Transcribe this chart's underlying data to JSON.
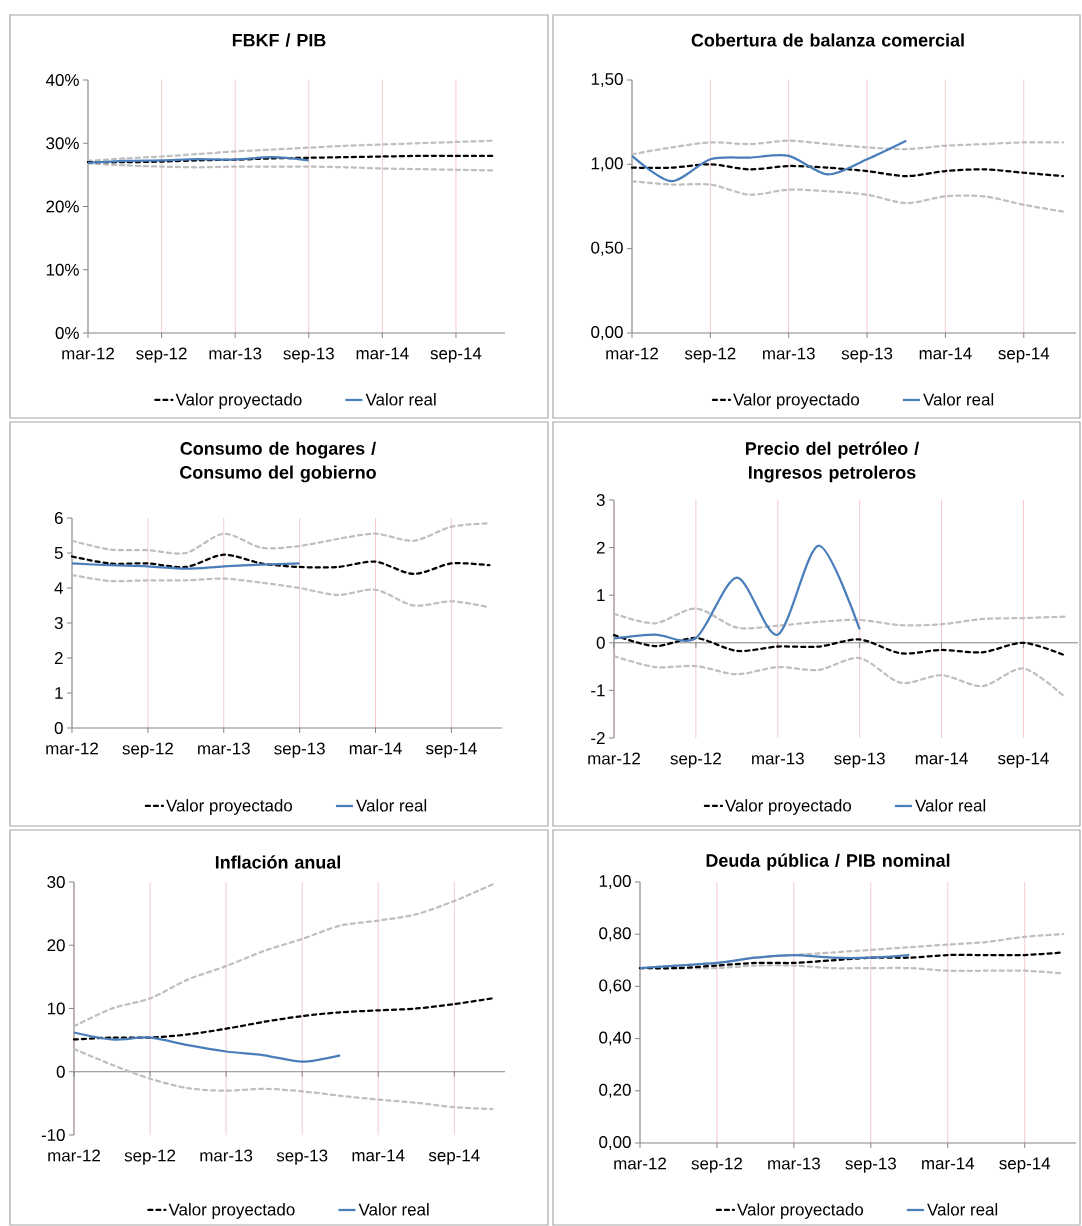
{
  "chart_data": [
    {
      "type": "line",
      "title": "FBKF / PIB",
      "x": [
        "2012-03",
        "2012-06",
        "2012-09",
        "2012-12",
        "2013-03",
        "2013-06",
        "2013-09",
        "2013-12",
        "2014-03",
        "2014-06",
        "2014-09",
        "2014-12"
      ],
      "xlim": [
        "2012-03",
        "2015-01"
      ],
      "xticks": [
        {
          "value": "2012-03",
          "label": "mar-12"
        },
        {
          "value": "2012-09",
          "label": "sep-12"
        },
        {
          "value": "2013-03",
          "label": "mar-13"
        },
        {
          "value": "2013-09",
          "label": "sep-13"
        },
        {
          "value": "2014-03",
          "label": "mar-14"
        },
        {
          "value": "2014-09",
          "label": "sep-14"
        }
      ],
      "ylim": [
        0,
        40
      ],
      "yticks": [
        {
          "value": 0,
          "label": "0%"
        },
        {
          "value": 10,
          "label": "10%"
        },
        {
          "value": 20,
          "label": "20%"
        },
        {
          "value": 30,
          "label": "30%"
        },
        {
          "value": 40,
          "label": "40%"
        }
      ],
      "grid": "x",
      "legend": "bottom",
      "series": [
        {
          "color": "#bfbfbf",
          "line_style": "dashed",
          "values": [
            27.2,
            27.6,
            27.9,
            28.3,
            28.7,
            29.0,
            29.3,
            29.6,
            29.8,
            30.0,
            30.2,
            30.4
          ]
        },
        {
          "color": "#bfbfbf",
          "line_style": "dashed",
          "values": [
            26.8,
            26.5,
            26.3,
            26.2,
            26.3,
            26.3,
            26.3,
            26.2,
            26.0,
            25.9,
            25.8,
            25.7
          ]
        },
        {
          "name": "Valor proyectado",
          "color": "#000000",
          "line_style": "dashed",
          "values": [
            27.0,
            27.0,
            27.1,
            27.3,
            27.4,
            27.6,
            27.7,
            27.8,
            27.9,
            28.0,
            28.0,
            28.0
          ]
        },
        {
          "name": "Valor real",
          "color": "#4a7ebb",
          "line_style": "solid",
          "values": [
            26.9,
            27.2,
            27.3,
            27.5,
            27.4,
            27.8,
            27.3,
            null,
            null,
            null,
            null,
            null
          ]
        }
      ]
    },
    {
      "type": "line",
      "title": "Cobertura de balanza comercial",
      "x": [
        "2012-03",
        "2012-06",
        "2012-09",
        "2012-12",
        "2013-03",
        "2013-06",
        "2013-09",
        "2013-12",
        "2014-03",
        "2014-06",
        "2014-09",
        "2014-12"
      ],
      "xlim": [
        "2012-03",
        "2015-01"
      ],
      "xticks": [
        {
          "value": "2012-03",
          "label": "mar-12"
        },
        {
          "value": "2012-09",
          "label": "sep-12"
        },
        {
          "value": "2013-03",
          "label": "mar-13"
        },
        {
          "value": "2013-09",
          "label": "sep-13"
        },
        {
          "value": "2014-03",
          "label": "mar-14"
        },
        {
          "value": "2014-09",
          "label": "sep-14"
        }
      ],
      "ylim": [
        0,
        1.5
      ],
      "yticks": [
        {
          "value": 0,
          "label": "0,00"
        },
        {
          "value": 0.5,
          "label": "0,50"
        },
        {
          "value": 1.0,
          "label": "1,00"
        },
        {
          "value": 1.5,
          "label": "1,50"
        }
      ],
      "grid": "x",
      "legend": "bottom",
      "series": [
        {
          "color": "#bfbfbf",
          "line_style": "dashed",
          "values": [
            1.06,
            1.1,
            1.13,
            1.12,
            1.14,
            1.12,
            1.1,
            1.09,
            1.11,
            1.12,
            1.13,
            1.13
          ]
        },
        {
          "color": "#bfbfbf",
          "line_style": "dashed",
          "values": [
            0.9,
            0.88,
            0.88,
            0.82,
            0.85,
            0.84,
            0.82,
            0.77,
            0.81,
            0.81,
            0.76,
            0.72
          ]
        },
        {
          "name": "Valor proyectado",
          "color": "#000000",
          "line_style": "dashed",
          "values": [
            0.98,
            0.98,
            1.0,
            0.97,
            0.99,
            0.98,
            0.96,
            0.93,
            0.96,
            0.97,
            0.95,
            0.93
          ]
        },
        {
          "name": "Valor real",
          "color": "#4a7ebb",
          "line_style": "solid",
          "values": [
            1.05,
            0.9,
            1.03,
            1.04,
            1.05,
            0.94,
            1.03,
            1.14,
            null,
            null,
            null,
            null
          ]
        }
      ]
    },
    {
      "type": "line",
      "title": "Consumo de hogares / Consumo del gobierno",
      "x": [
        "2012-03",
        "2012-06",
        "2012-09",
        "2012-12",
        "2013-03",
        "2013-06",
        "2013-09",
        "2013-12",
        "2014-03",
        "2014-06",
        "2014-09",
        "2014-12"
      ],
      "xlim": [
        "2012-03",
        "2015-01"
      ],
      "xticks": [
        {
          "value": "2012-03",
          "label": "mar-12"
        },
        {
          "value": "2012-09",
          "label": "sep-12"
        },
        {
          "value": "2013-03",
          "label": "mar-13"
        },
        {
          "value": "2013-09",
          "label": "sep-13"
        },
        {
          "value": "2014-03",
          "label": "mar-14"
        },
        {
          "value": "2014-09",
          "label": "sep-14"
        }
      ],
      "ylim": [
        0,
        6
      ],
      "yticks": [
        0,
        1,
        2,
        3,
        4,
        5,
        6
      ],
      "grid": "x",
      "legend": "bottom",
      "series": [
        {
          "color": "#bfbfbf",
          "line_style": "dashed",
          "values": [
            5.35,
            5.1,
            5.08,
            5.0,
            5.55,
            5.15,
            5.2,
            5.4,
            5.55,
            5.35,
            5.75,
            5.85
          ]
        },
        {
          "color": "#bfbfbf",
          "line_style": "dashed",
          "values": [
            4.37,
            4.2,
            4.22,
            4.22,
            4.27,
            4.15,
            4.0,
            3.8,
            3.95,
            3.5,
            3.62,
            3.45
          ]
        },
        {
          "name": "Valor proyectado",
          "color": "#000000",
          "line_style": "dashed",
          "values": [
            4.9,
            4.7,
            4.7,
            4.6,
            4.95,
            4.7,
            4.6,
            4.6,
            4.75,
            4.4,
            4.7,
            4.65
          ]
        },
        {
          "name": "Valor real",
          "color": "#4a7ebb",
          "line_style": "solid",
          "values": [
            4.7,
            4.65,
            4.62,
            4.55,
            4.62,
            4.67,
            4.7,
            null,
            null,
            null,
            null,
            null
          ]
        }
      ]
    },
    {
      "type": "line",
      "title": "Precio del petróleo / Ingresos petroleros",
      "x": [
        "2012-03",
        "2012-06",
        "2012-09",
        "2012-12",
        "2013-03",
        "2013-06",
        "2013-09",
        "2013-12",
        "2014-03",
        "2014-06",
        "2014-09",
        "2014-12"
      ],
      "xlim": [
        "2012-03",
        "2015-01"
      ],
      "xticks": [
        {
          "value": "2012-03",
          "label": "mar-12"
        },
        {
          "value": "2012-09",
          "label": "sep-12"
        },
        {
          "value": "2013-03",
          "label": "mar-13"
        },
        {
          "value": "2013-09",
          "label": "sep-13"
        },
        {
          "value": "2014-03",
          "label": "mar-14"
        },
        {
          "value": "2014-09",
          "label": "sep-14"
        }
      ],
      "ylim": [
        -2,
        3
      ],
      "yticks": [
        -2,
        -1,
        0,
        1,
        2,
        3
      ],
      "grid": "x",
      "legend": "bottom",
      "series": [
        {
          "color": "#bfbfbf",
          "line_style": "dashed",
          "values": [
            0.61,
            0.41,
            0.72,
            0.32,
            0.36,
            0.44,
            0.48,
            0.37,
            0.39,
            0.5,
            0.52,
            0.55
          ]
        },
        {
          "color": "#bfbfbf",
          "line_style": "dashed",
          "values": [
            -0.28,
            -0.51,
            -0.49,
            -0.66,
            -0.51,
            -0.57,
            -0.32,
            -0.84,
            -0.68,
            -0.91,
            -0.54,
            -1.13
          ]
        },
        {
          "name": "Valor proyectado",
          "color": "#000000",
          "line_style": "dashed",
          "values": [
            0.16,
            -0.07,
            0.1,
            -0.17,
            -0.08,
            -0.08,
            0.07,
            -0.22,
            -0.15,
            -0.2,
            0.0,
            -0.26
          ]
        },
        {
          "name": "Valor real",
          "color": "#4a7ebb",
          "line_style": "solid",
          "values": [
            0.09,
            0.17,
            0.1,
            1.37,
            0.17,
            2.04,
            0.28,
            null,
            null,
            null,
            null,
            null
          ]
        }
      ]
    },
    {
      "type": "line",
      "title": "Inflación anual",
      "x": [
        "2012-03",
        "2012-06",
        "2012-09",
        "2012-12",
        "2013-03",
        "2013-06",
        "2013-09",
        "2013-12",
        "2014-03",
        "2014-06",
        "2014-09",
        "2014-12"
      ],
      "xlim": [
        "2012-03",
        "2015-01"
      ],
      "xticks": [
        {
          "value": "2012-03",
          "label": "mar-12"
        },
        {
          "value": "2012-09",
          "label": "sep-12"
        },
        {
          "value": "2013-03",
          "label": "mar-13"
        },
        {
          "value": "2013-09",
          "label": "sep-13"
        },
        {
          "value": "2014-03",
          "label": "mar-14"
        },
        {
          "value": "2014-09",
          "label": "sep-14"
        }
      ],
      "ylim": [
        -10,
        30
      ],
      "yticks": [
        -10,
        0,
        10,
        20,
        30
      ],
      "grid": "x",
      "legend": "bottom",
      "series": [
        {
          "color": "#bfbfbf",
          "line_style": "dashed",
          "values": [
            7.2,
            10.0,
            11.6,
            14.6,
            16.7,
            19.1,
            21.0,
            23.1,
            23.9,
            24.9,
            27.0,
            29.6
          ]
        },
        {
          "color": "#bfbfbf",
          "line_style": "dashed",
          "values": [
            3.6,
            1.1,
            -1.1,
            -2.6,
            -3.0,
            -2.7,
            -3.1,
            -3.8,
            -4.4,
            -4.9,
            -5.6,
            -5.9
          ]
        },
        {
          "name": "Valor proyectado",
          "color": "#000000",
          "line_style": "dashed",
          "values": [
            5.1,
            5.4,
            5.4,
            5.9,
            6.8,
            7.9,
            8.8,
            9.4,
            9.7,
            10.0,
            10.7,
            11.6
          ]
        },
        {
          "name": "Valor real",
          "color": "#4a7ebb",
          "line_style": "solid",
          "values": [
            6.2,
            5.1,
            5.4,
            4.2,
            3.2,
            2.6,
            1.6,
            2.6,
            null,
            null,
            null,
            null
          ]
        }
      ]
    },
    {
      "type": "line",
      "title": "Deuda pública / PIB nominal",
      "x": [
        "2012-03",
        "2012-06",
        "2012-09",
        "2012-12",
        "2013-03",
        "2013-06",
        "2013-09",
        "2013-12",
        "2014-03",
        "2014-06",
        "2014-09",
        "2014-12"
      ],
      "xlim": [
        "2012-03",
        "2015-01"
      ],
      "xticks": [
        {
          "value": "2012-03",
          "label": "mar-12"
        },
        {
          "value": "2012-09",
          "label": "sep-12"
        },
        {
          "value": "2013-03",
          "label": "mar-13"
        },
        {
          "value": "2013-09",
          "label": "sep-13"
        },
        {
          "value": "2014-03",
          "label": "mar-14"
        },
        {
          "value": "2014-09",
          "label": "sep-14"
        }
      ],
      "ylim": [
        0,
        1.0
      ],
      "yticks": [
        {
          "value": 0,
          "label": "0,00"
        },
        {
          "value": 0.2,
          "label": "0,20"
        },
        {
          "value": 0.4,
          "label": "0,40"
        },
        {
          "value": 0.6,
          "label": "0,60"
        },
        {
          "value": 0.8,
          "label": "0,80"
        },
        {
          "value": 1.0,
          "label": "1,00"
        }
      ],
      "grid": "x",
      "legend": "bottom",
      "series": [
        {
          "color": "#bfbfbf",
          "line_style": "dashed",
          "values": [
            0.67,
            0.68,
            0.69,
            0.71,
            0.72,
            0.73,
            0.74,
            0.75,
            0.76,
            0.77,
            0.79,
            0.8
          ]
        },
        {
          "color": "#bfbfbf",
          "line_style": "dashed",
          "values": [
            0.67,
            0.67,
            0.67,
            0.68,
            0.68,
            0.67,
            0.67,
            0.67,
            0.66,
            0.66,
            0.66,
            0.65
          ]
        },
        {
          "name": "Valor proyectado",
          "color": "#000000",
          "line_style": "dashed",
          "values": [
            0.67,
            0.67,
            0.68,
            0.69,
            0.69,
            0.7,
            0.71,
            0.71,
            0.72,
            0.72,
            0.72,
            0.73
          ]
        },
        {
          "name": "Valor real",
          "color": "#4a7ebb",
          "line_style": "solid",
          "values": [
            0.67,
            0.68,
            0.69,
            0.71,
            0.72,
            0.71,
            0.71,
            0.72,
            null,
            null,
            null,
            null
          ]
        }
      ]
    }
  ]
}
